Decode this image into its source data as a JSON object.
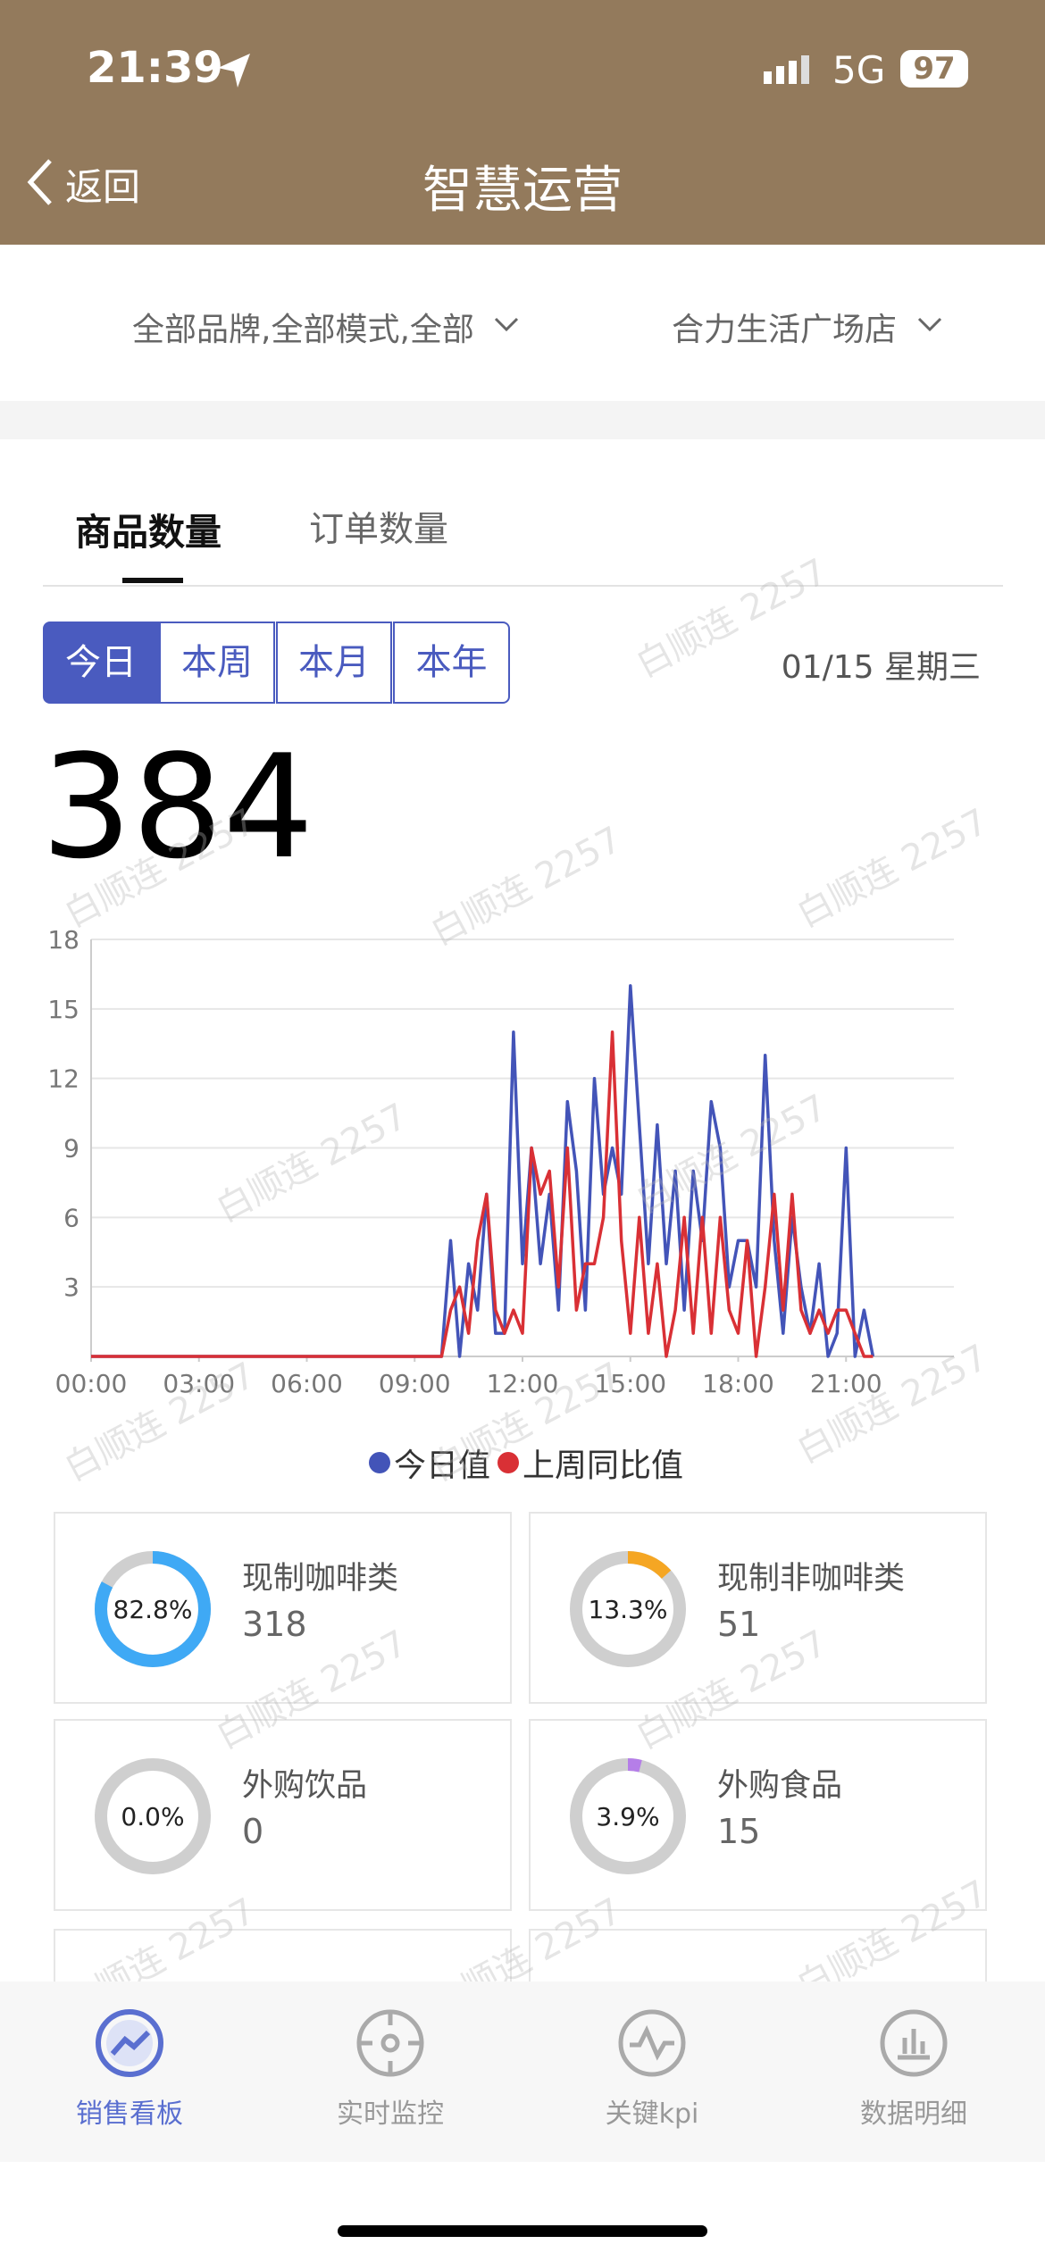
{
  "status": {
    "time": "21:39",
    "network": "5G",
    "battery": "97"
  },
  "nav": {
    "back": "返回",
    "title": "智慧运营"
  },
  "filters": [
    "全部品牌,全部模式,全部",
    "合力生活广场店"
  ],
  "tabs": [
    "商品数量",
    "订单数量"
  ],
  "periods": [
    "今日",
    "本周",
    "本月",
    "本年"
  ],
  "date": "01/15 星期三",
  "total": "384",
  "watermark": "白顺连 2257",
  "chart_data": {
    "type": "line",
    "x": [
      0,
      9.75,
      10,
      10.25,
      10.5,
      10.75,
      11,
      11.25,
      11.5,
      11.75,
      12,
      12.25,
      12.5,
      12.75,
      13,
      13.25,
      13.5,
      13.75,
      14,
      14.25,
      14.5,
      14.75,
      15,
      15.25,
      15.5,
      15.75,
      16,
      16.25,
      16.5,
      16.75,
      17,
      17.25,
      17.5,
      17.75,
      18,
      18.25,
      18.5,
      18.75,
      19,
      19.25,
      19.5,
      19.75,
      20,
      20.25,
      20.5,
      20.75,
      21,
      21.25,
      21.5,
      21.75
    ],
    "series": [
      {
        "name": "今日值",
        "color": "#4354b8",
        "values": [
          0,
          0,
          5,
          0,
          4,
          2,
          7,
          1,
          1,
          14,
          4,
          9,
          4,
          7,
          2,
          11,
          8,
          2,
          12,
          7,
          9,
          7,
          16,
          10,
          4,
          10,
          4,
          8,
          2,
          8,
          5,
          11,
          9,
          3,
          5,
          5,
          3,
          13,
          5,
          1,
          6,
          3,
          1,
          4,
          0,
          1,
          9,
          0,
          2,
          0
        ]
      },
      {
        "name": "上周同比值",
        "color": "#d93035",
        "values": [
          0,
          0,
          2,
          3,
          1,
          5,
          7,
          2,
          1,
          2,
          1,
          9,
          7,
          8,
          3,
          9,
          2,
          4,
          4,
          6,
          14,
          5,
          1,
          6,
          1,
          4,
          0,
          2,
          6,
          1,
          6,
          1,
          6,
          2,
          1,
          5,
          0,
          3,
          7,
          2,
          7,
          2,
          1,
          2,
          1,
          2,
          2,
          1,
          0,
          0
        ]
      }
    ],
    "xlim": [
      0,
      24
    ],
    "xticks": [
      {
        "value": 0,
        "label": "00:00"
      },
      {
        "value": 3,
        "label": "03:00"
      },
      {
        "value": 6,
        "label": "06:00"
      },
      {
        "value": 9,
        "label": "09:00"
      },
      {
        "value": 12,
        "label": "12:00"
      },
      {
        "value": 15,
        "label": "15:00"
      },
      {
        "value": 18,
        "label": "18:00"
      },
      {
        "value": 21,
        "label": "21:00"
      }
    ],
    "ylim": [
      0,
      18
    ],
    "yticks": [
      3,
      6,
      9,
      12,
      15,
      18
    ],
    "grid": true
  },
  "cards": [
    {
      "label": "现制咖啡类",
      "value": 82.8,
      "value_label": "82.8%",
      "count": "318",
      "color": "#3fa9f5"
    },
    {
      "label": "现制非咖啡类",
      "value": 13.3,
      "value_label": "13.3%",
      "count": "51",
      "color": "#f5a623"
    },
    {
      "label": "外购饮品",
      "value": 0,
      "value_label": "0.0%",
      "count": "0",
      "color": "#3fa9f5"
    },
    {
      "label": "外购食品",
      "value": 3.9,
      "value_label": "3.9%",
      "count": "15",
      "color": "#b57ee8"
    }
  ],
  "bottom_tabs": [
    "销售看板",
    "实时监控",
    "关键kpi",
    "数据明细"
  ]
}
